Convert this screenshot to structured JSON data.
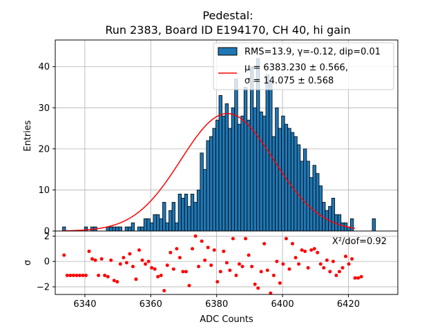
{
  "chart_data": [
    {
      "type": "bar",
      "panel": "main",
      "title_line1": "Pedestal:",
      "title_line2": "Run 2383, Board ID E194170, CH 40, hi gain",
      "ylabel": "Entries",
      "xlim": [
        6331,
        6435
      ],
      "ylim": [
        0,
        46.5
      ],
      "yticks": [
        0,
        10,
        20,
        30,
        40
      ],
      "grid": true,
      "legend_placement": "top-right",
      "hist_label": "RMS=13.9, γ=-0.12, dip=0.01",
      "fit_label_line1": "μ = 6383.230 ± 0.566,",
      "fit_label_line2": "σ = 14.075 ± 0.568",
      "bin_width": 0.95,
      "bin_start": 6333.2,
      "counts": [
        1,
        0,
        0,
        0,
        0,
        0,
        0,
        1,
        0,
        1,
        1,
        0,
        0,
        0,
        1,
        1,
        1,
        1,
        1,
        0,
        1,
        1,
        2,
        0,
        1,
        1,
        3,
        3,
        2,
        4,
        4,
        3,
        7,
        2,
        5,
        7,
        2,
        9,
        8,
        9,
        6,
        9,
        7,
        10,
        19,
        15,
        22,
        23,
        25,
        27,
        33,
        28,
        31,
        25,
        30,
        37,
        26,
        28,
        35,
        27,
        40,
        30,
        42,
        29,
        28,
        38,
        36,
        23,
        30,
        25,
        28,
        26,
        25,
        24,
        23,
        21,
        17,
        20,
        17,
        13,
        16,
        14,
        11,
        7,
        5,
        6,
        8,
        4,
        4,
        2,
        2,
        1,
        3,
        0,
        0,
        0,
        0,
        0,
        0,
        3
      ],
      "fit_mu": 6383.23,
      "fit_sigma": 14.075,
      "fit_amp": 28.6,
      "fit_xrange": [
        6333,
        6422
      ],
      "colors": {
        "bar_fill": "#1f77b4",
        "bar_edge": "#000000",
        "fit": "#ff0000",
        "grid": "#b0b0b0"
      }
    },
    {
      "type": "scatter",
      "panel": "residual",
      "ylabel": "σ",
      "xlabel": "ADC Counts",
      "xlim": [
        6331,
        6435
      ],
      "ylim": [
        -2.6,
        2.4
      ],
      "yticks": [
        -2,
        0,
        2
      ],
      "xticks": [
        6340,
        6360,
        6380,
        6400,
        6420
      ],
      "grid": true,
      "annotation": "X²/dof=0.92",
      "residuals": [
        0.5,
        -1.1,
        -1.1,
        -1.1,
        -1.1,
        -1.1,
        -1.1,
        -1.1,
        0.8,
        0.2,
        0.1,
        -1.1,
        0.2,
        -1.1,
        -1.2,
        0.1,
        -1.5,
        -1.6,
        -0.2,
        0.3,
        -0.1,
        0.6,
        -0.4,
        -1.4,
        0.9,
        0.1,
        -0.2,
        0.0,
        -0.5,
        -0.6,
        -1.2,
        -1.1,
        -2.3,
        -0.3,
        0.7,
        -0.6,
        1.0,
        0.3,
        -0.8,
        -0.8,
        -1.9,
        1.0,
        2.0,
        -0.4,
        1.6,
        0.1,
        1.1,
        -0.3,
        0.9,
        -1.6,
        -0.8,
        0.8,
        -0.1,
        -0.7,
        1.8,
        -1.1,
        -0.2,
        -0.4,
        1.8,
        0.5,
        -0.4,
        -1.8,
        -2.1,
        -0.8,
        1.4,
        -0.7,
        -2.5,
        -1.1,
        0.0,
        -1.7,
        -0.2,
        1.8,
        -0.6,
        1.4,
        0.3,
        -0.2,
        0.9,
        0.8,
        -0.5,
        0.9,
        1.0,
        0.7,
        -0.2,
        -0.5,
        0.1,
        -0.8,
        0.0,
        -1.1,
        -0.8,
        -0.5,
        0.4,
        -0.2,
        0.2,
        -1.3,
        -1.3,
        -1.2
      ]
    }
  ]
}
